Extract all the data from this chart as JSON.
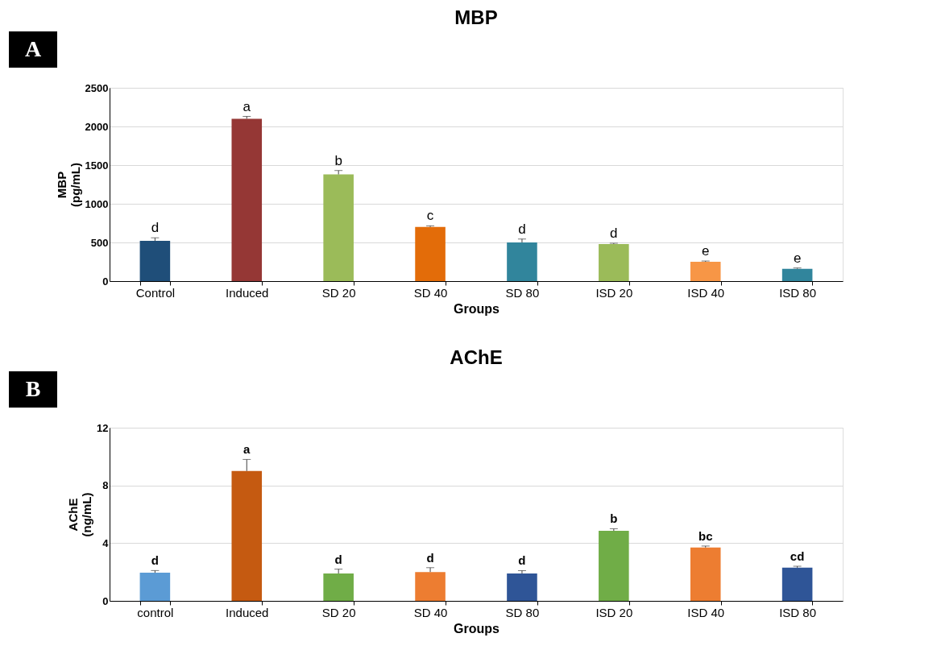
{
  "chart_data": [
    {
      "type": "bar",
      "title": "MBP",
      "xlabel": "Groups",
      "ylabel": "MBP (pg/mL)",
      "annotations": [
        "A"
      ],
      "categories": [
        "Control",
        "Induced",
        "SD 20",
        "SD 40",
        "SD 80",
        "ISD 20",
        "ISD 40",
        "ISD 80"
      ],
      "values": [
        520,
        2100,
        1380,
        700,
        500,
        480,
        250,
        160
      ],
      "colors": [
        "#1f4e79",
        "#953735",
        "#9bbb59",
        "#e36c09",
        "#31859c",
        "#9bbb59",
        "#f79646",
        "#31859c"
      ],
      "errors": [
        [
          520,
          560
        ],
        [
          2100,
          2130
        ],
        [
          1380,
          1430
        ],
        [
          700,
          715
        ],
        [
          500,
          545
        ],
        [
          480,
          490
        ],
        [
          250,
          260
        ],
        [
          160,
          170
        ]
      ],
      "value_labels": [
        "d",
        "a",
        "b",
        "c",
        "d",
        "d",
        "e",
        "e"
      ],
      "ylim": [
        0,
        2500
      ],
      "yticks": [
        0,
        500,
        1000,
        1500,
        2000,
        2500
      ],
      "grid": "y"
    },
    {
      "type": "bar",
      "title": "AChE",
      "xlabel": "Groups",
      "ylabel": "AChE (ng/mL)",
      "annotations": [
        "B"
      ],
      "categories": [
        "control",
        "Induced",
        "SD 20",
        "SD 40",
        "SD 80",
        "ISD 20",
        "ISD 40",
        "ISD 80"
      ],
      "values": [
        1.95,
        9.0,
        1.9,
        2.0,
        1.9,
        4.85,
        3.7,
        2.3
      ],
      "colors": [
        "#5b9bd5",
        "#c55a11",
        "#70ad47",
        "#ed7d31",
        "#2f5597",
        "#70ad47",
        "#ed7d31",
        "#2f5597"
      ],
      "errors": [
        [
          1.95,
          2.1
        ],
        [
          9.0,
          9.8
        ],
        [
          1.9,
          2.2
        ],
        [
          2.0,
          2.3
        ],
        [
          1.9,
          2.1
        ],
        [
          4.85,
          5.0
        ],
        [
          3.7,
          3.8
        ],
        [
          2.3,
          2.4
        ]
      ],
      "value_labels": [
        "d",
        "a",
        "d",
        "d",
        "d",
        "b",
        "bc",
        "cd"
      ],
      "ylim": [
        0,
        12
      ],
      "yticks": [
        0,
        4,
        8,
        12
      ],
      "grid": "y"
    }
  ]
}
